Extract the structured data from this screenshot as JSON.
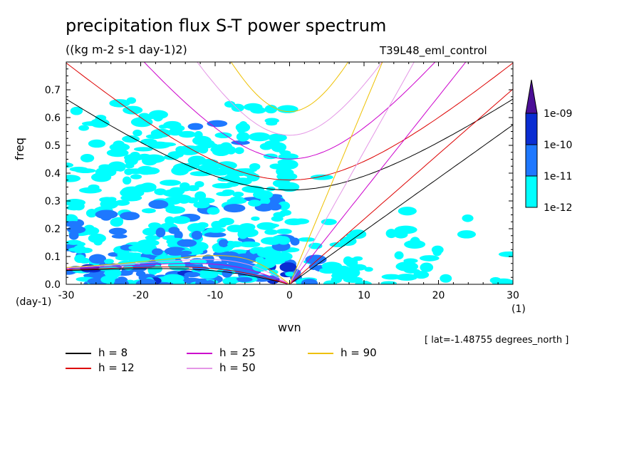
{
  "title": "precipitation flux S-T power spectrum",
  "units": "((kg m-2 s-1 day-1)2)",
  "run_label": "T39L48_eml_control",
  "lat_note": "[ lat=-1.48755 degrees_north ]",
  "chart_data": {
    "type": "heatmap",
    "xlabel": "wvn",
    "ylabel": "freq",
    "x_unit": "(1)",
    "y_unit": "(day-1)",
    "xlim": [
      -30,
      30
    ],
    "ylim": [
      0,
      0.8
    ],
    "x_ticks": [
      -30,
      -20,
      -10,
      0,
      10,
      20,
      30
    ],
    "x_tick_labels": [
      "-30",
      "-20",
      "-10",
      "0",
      "10",
      "20",
      "30"
    ],
    "y_ticks": [
      0.0,
      0.1,
      0.2,
      0.3,
      0.4,
      0.5,
      0.6,
      0.7
    ],
    "y_tick_labels": [
      "0.0",
      "0.1",
      "0.2",
      "0.3",
      "0.4",
      "0.5",
      "0.6",
      "0.7"
    ],
    "colorbar": {
      "levels": [
        "1e-12",
        "1e-11",
        "1e-10",
        "1e-09"
      ],
      "colors": [
        "#00ffff",
        "#1e78ff",
        "#0a2dd2",
        "#2a1aa0",
        "#4b0f96"
      ]
    },
    "dispersion_curves": [
      {
        "name": "h =  8",
        "h": 8,
        "color": "#000000"
      },
      {
        "name": "h = 12",
        "h": 12,
        "color": "#dd0000"
      },
      {
        "name": "h = 25",
        "h": 25,
        "color": "#cc00cc"
      },
      {
        "name": "h = 50",
        "h": 50,
        "color": "#e496e6"
      },
      {
        "name": "h = 90",
        "h": 90,
        "color": "#eec000"
      }
    ]
  }
}
